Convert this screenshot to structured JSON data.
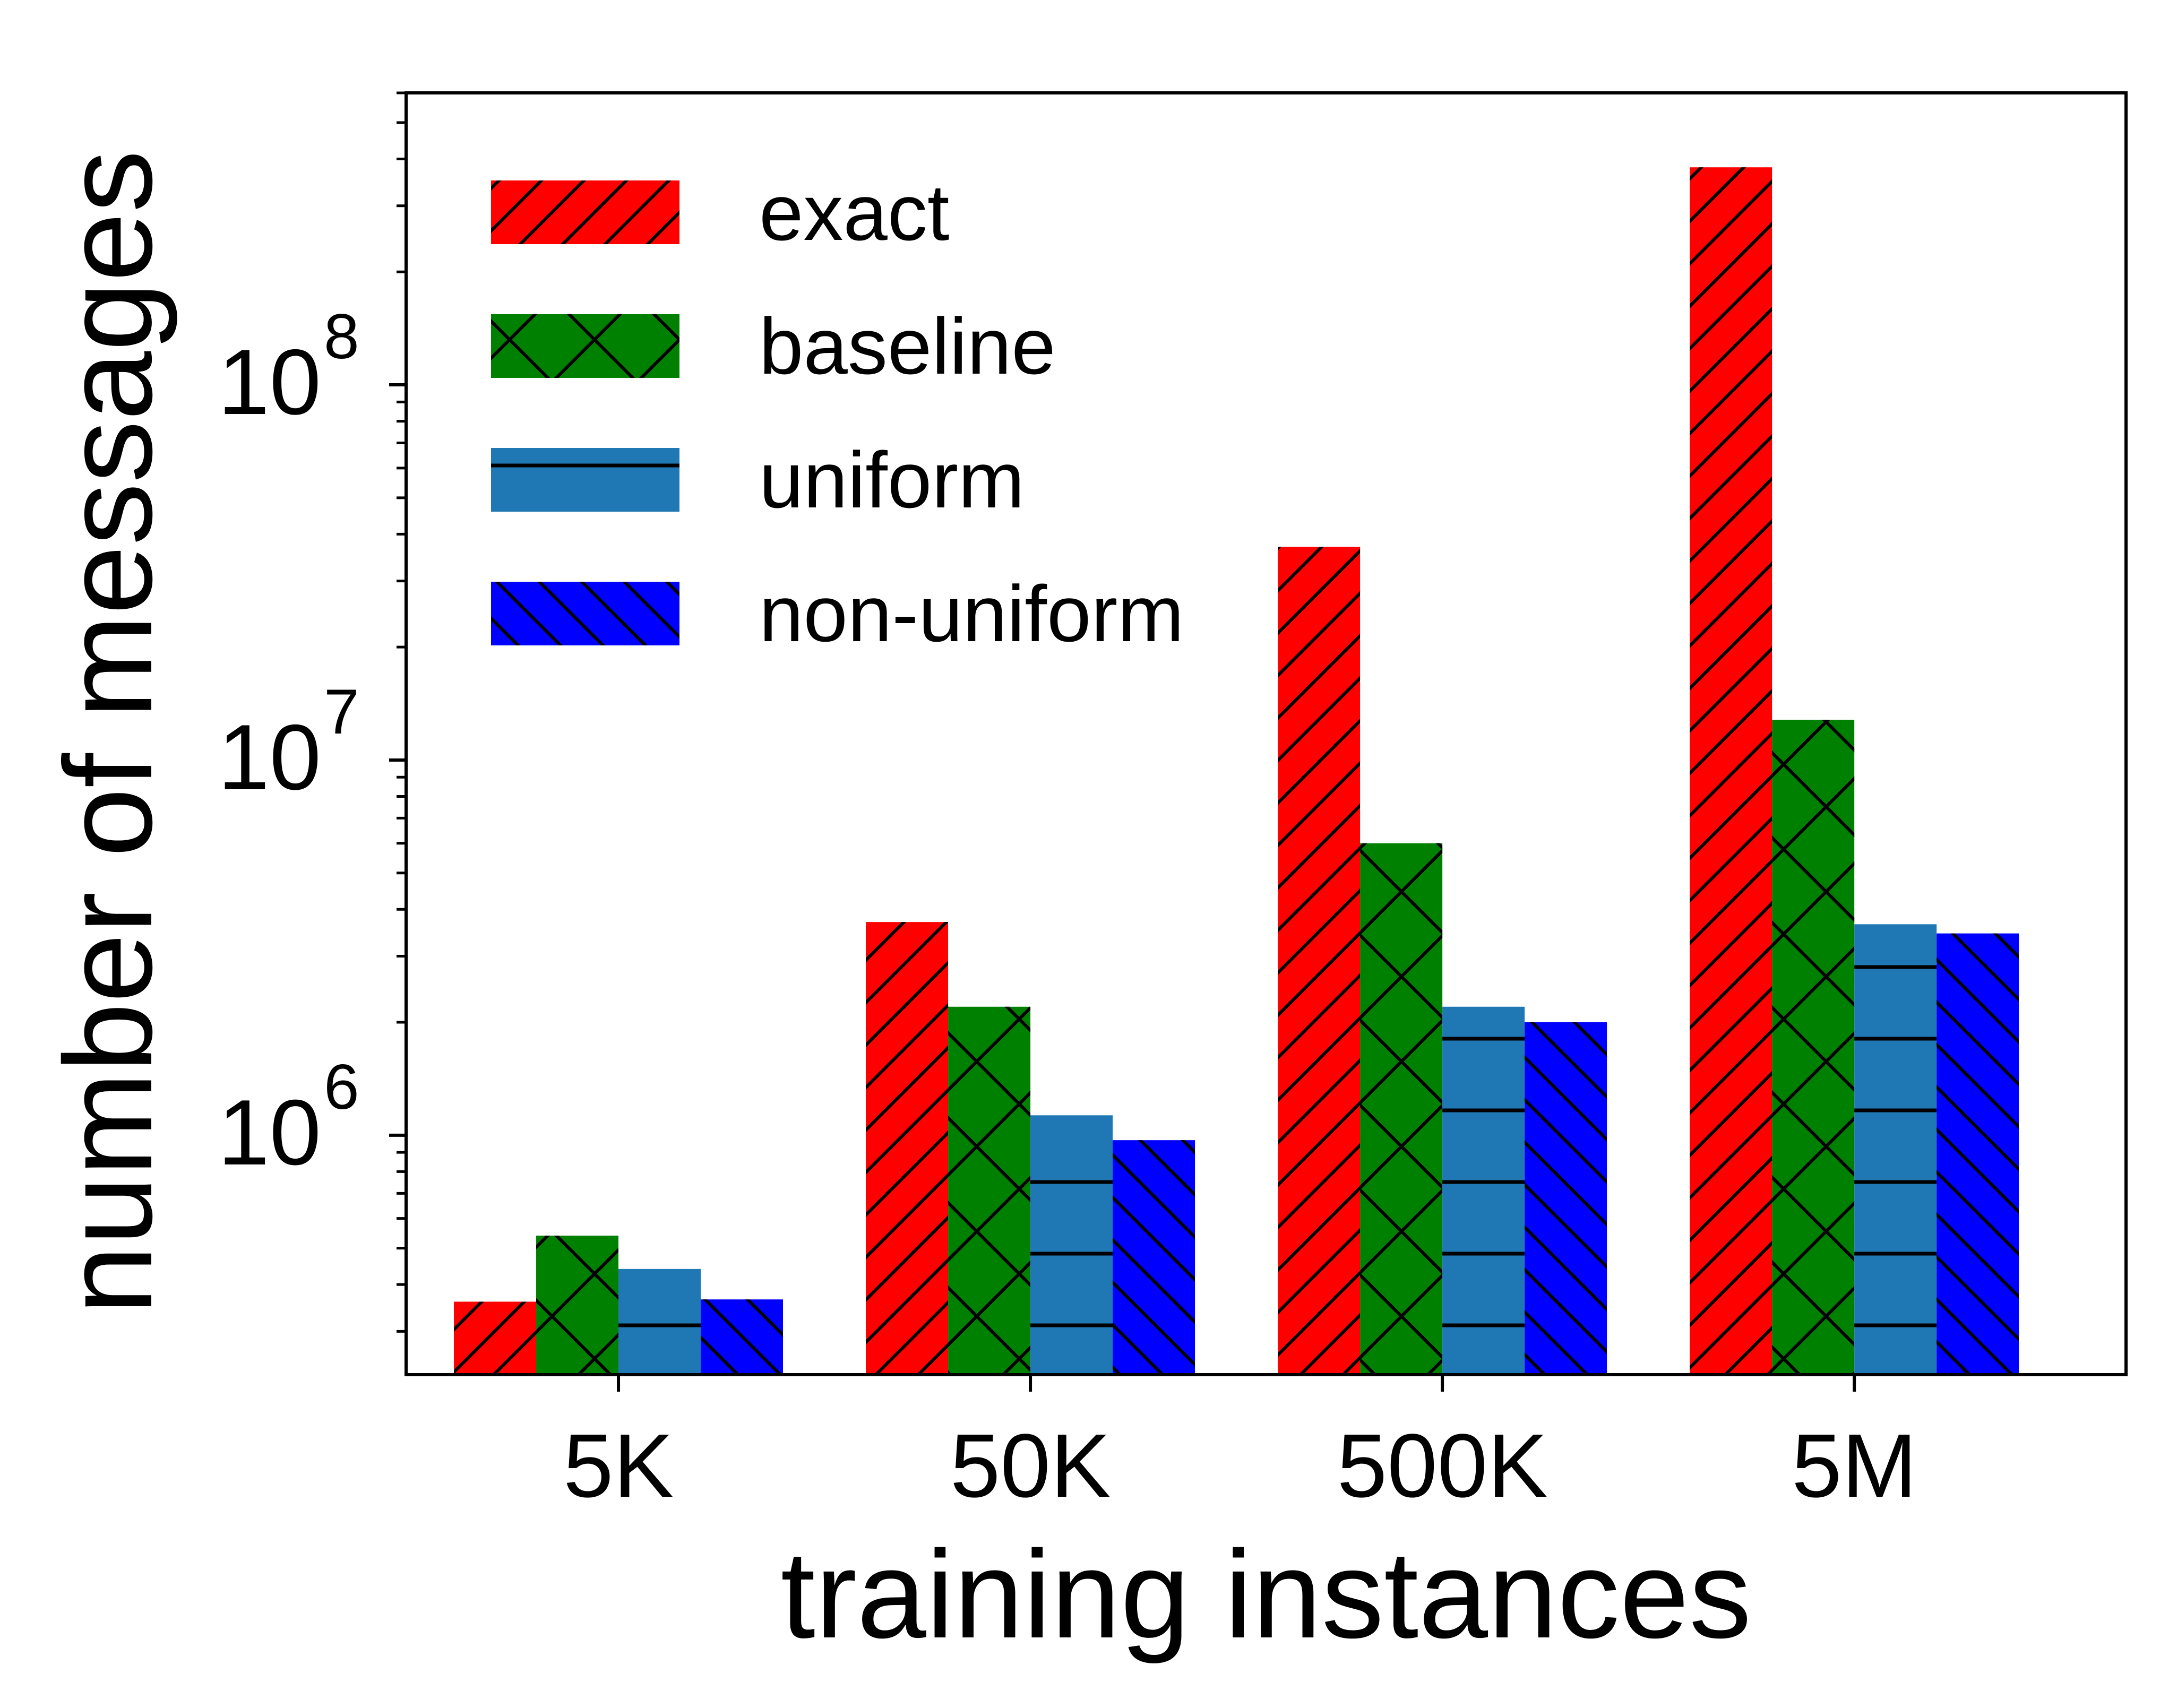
{
  "chart_data": {
    "type": "bar",
    "xlabel": "training instances",
    "ylabel": "number of messages",
    "y_scale": "log",
    "ylim": [
      230000,
      600000000
    ],
    "y_ticks": [
      {
        "value": 1000000,
        "base": "10",
        "exp": "6"
      },
      {
        "value": 10000000,
        "base": "10",
        "exp": "7"
      },
      {
        "value": 100000000,
        "base": "10",
        "exp": "8"
      }
    ],
    "categories": [
      "5K",
      "50K",
      "500K",
      "5M"
    ],
    "series": [
      {
        "name": "exact",
        "color": "#ff0000",
        "hatch": "forward-diagonal",
        "values": [
          360000,
          3700000,
          37000000,
          380000000
        ]
      },
      {
        "name": "baseline",
        "color": "#008000",
        "hatch": "cross",
        "values": [
          540000,
          2200000,
          6000000,
          12800000
        ]
      },
      {
        "name": "uniform",
        "color": "#1f77b4",
        "hatch": "horizontal",
        "values": [
          440000,
          1130000,
          2200000,
          3650000
        ]
      },
      {
        "name": "non-uniform",
        "color": "#0000ff",
        "hatch": "back-diagonal",
        "values": [
          365000,
          970000,
          2000000,
          3450000
        ]
      }
    ],
    "legend_position": "top-left",
    "grid": false
  }
}
